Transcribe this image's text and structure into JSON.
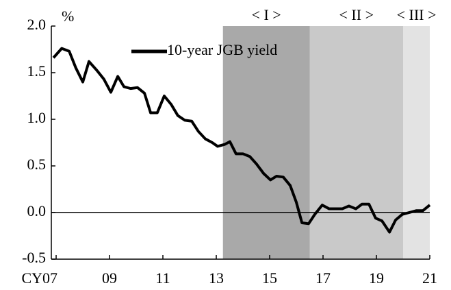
{
  "chart_data": {
    "type": "line",
    "y_unit": "%",
    "x": [
      2006.9,
      2007.21,
      2007.49,
      2007.74,
      2008.0,
      2008.23,
      2008.51,
      2008.79,
      2009.05,
      2009.31,
      2009.54,
      2009.79,
      2010.05,
      2010.31,
      2010.54,
      2010.79,
      2011.05,
      2011.31,
      2011.56,
      2011.82,
      2012.08,
      2012.33,
      2012.59,
      2012.85,
      2013.05,
      2013.31,
      2013.51,
      2013.74,
      2014.0,
      2014.26,
      2014.51,
      2014.77,
      2015.03,
      2015.26,
      2015.51,
      2015.77,
      2016.0,
      2016.21,
      2016.46,
      2016.69,
      2016.97,
      2017.23,
      2017.49,
      2017.72,
      2017.97,
      2018.23,
      2018.46,
      2018.72,
      2018.97,
      2019.21,
      2019.49,
      2019.72,
      2019.97,
      2020.23,
      2020.49,
      2020.74,
      2021.0
    ],
    "series": [
      {
        "name": "10-year JGB yield",
        "color": "#000000",
        "values": [
          1.66,
          1.76,
          1.73,
          1.55,
          1.4,
          1.62,
          1.53,
          1.43,
          1.29,
          1.46,
          1.35,
          1.33,
          1.34,
          1.28,
          1.07,
          1.07,
          1.25,
          1.16,
          1.04,
          0.99,
          0.98,
          0.87,
          0.79,
          0.75,
          0.71,
          0.73,
          0.76,
          0.63,
          0.63,
          0.6,
          0.52,
          0.42,
          0.35,
          0.39,
          0.38,
          0.29,
          0.11,
          -0.11,
          -0.12,
          -0.02,
          0.08,
          0.04,
          0.04,
          0.04,
          0.07,
          0.04,
          0.09,
          0.09,
          -0.06,
          -0.09,
          -0.21,
          -0.08,
          -0.02,
          0.0,
          0.02,
          0.02,
          0.08
        ]
      }
    ],
    "xlim": [
      2006.82,
      2021.0
    ],
    "xticks": [
      {
        "value": 2007,
        "label": "CY07"
      },
      {
        "value": 2009,
        "label": "09"
      },
      {
        "value": 2011,
        "label": "11"
      },
      {
        "value": 2013,
        "label": "13"
      },
      {
        "value": 2015,
        "label": "15"
      },
      {
        "value": 2017,
        "label": "17"
      },
      {
        "value": 2019,
        "label": "19"
      },
      {
        "value": 2021,
        "label": "21"
      }
    ],
    "ylim": [
      -0.5,
      2.0
    ],
    "yticks": [
      {
        "value": 2.0,
        "label": "2.0"
      },
      {
        "value": 1.5,
        "label": "1.5"
      },
      {
        "value": 1.0,
        "label": "1.0"
      },
      {
        "value": 0.5,
        "label": "0.5"
      },
      {
        "value": 0.0,
        "label": "0.0"
      },
      {
        "value": -0.5,
        "label": "-0.5"
      }
    ],
    "zero_line": 0,
    "shaded_regions": [
      {
        "label": "< I >",
        "start": 2013.25,
        "end": 2016.5,
        "color": "#a9a9a9"
      },
      {
        "label": "< II >",
        "start": 2016.5,
        "end": 2020.0,
        "color": "#c9c9c9"
      },
      {
        "label": "< III >",
        "start": 2020.0,
        "end": 2021.0,
        "color": "#e3e3e3"
      }
    ],
    "legend": "upper left"
  }
}
